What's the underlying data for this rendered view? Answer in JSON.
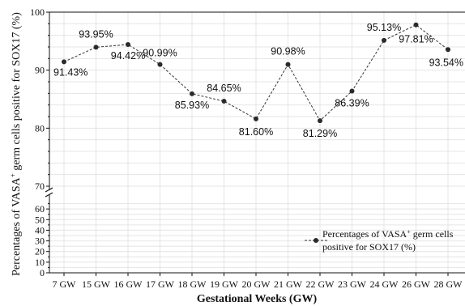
{
  "chart_data": {
    "type": "line",
    "title": "",
    "xlabel": "Gestational Weeks (GW)",
    "ylabel_prefix": "Percentages of VASA",
    "ylabel_sup": "+",
    "ylabel_suffix": " germ cells positive for SOX17 (%)",
    "categories": [
      "7 GW",
      "15 GW",
      "16 GW",
      "17 GW",
      "18 GW",
      "19 GW",
      "20 GW",
      "21 GW",
      "22 GW",
      "23 GW",
      "24 GW",
      "26 GW",
      "28 GW"
    ],
    "series": [
      {
        "name": "Percentages of VASA+ germ cells positive for SOX17 (%)",
        "values": [
          91.43,
          93.95,
          94.42,
          90.99,
          85.93,
          84.65,
          81.6,
          90.98,
          81.29,
          86.39,
          95.13,
          97.81,
          93.54
        ],
        "labels": [
          "91.43%",
          "93.95%",
          "94.42%",
          "90.99%",
          "85.93%",
          "84.65%",
          "81.60%",
          "90.98%",
          "81.29%",
          "86.39%",
          "95.13%",
          "97.81%",
          "93.54%"
        ]
      }
    ],
    "y_axis_broken": true,
    "ylim_lower": [
      0,
      70
    ],
    "ylim_upper": [
      70,
      100
    ],
    "yticks_lower": [
      0,
      10,
      20,
      30,
      40,
      50,
      60
    ],
    "yticks_upper": [
      70,
      80,
      90,
      100
    ],
    "grid": true,
    "legend_position": "bottom-right",
    "legend_line1_prefix": "Percentages of VASA",
    "legend_line1_sup": "+",
    "legend_line1_suffix": " germ cells",
    "legend_line2": "positive for SOX17 (%)",
    "colors": {
      "line": "#333333",
      "marker": "#2a2a2a",
      "grid": "#e4e4e4",
      "axis": "#111111"
    }
  }
}
